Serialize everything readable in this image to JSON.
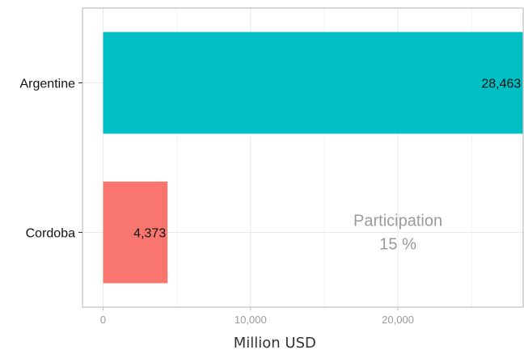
{
  "chart_data": {
    "type": "bar",
    "orientation": "horizontal",
    "categories": [
      "Argentine",
      "Cordoba"
    ],
    "values": [
      28463,
      4373
    ],
    "value_labels": [
      "28,463",
      "4,373"
    ],
    "colors": [
      "#00BFC4",
      "#F8766D"
    ],
    "xlabel": "Million USD",
    "ylabel": "",
    "title": "",
    "xlim": [
      -1400,
      28500
    ],
    "xticks": [
      0,
      10000,
      20000
    ],
    "xtick_labels": [
      "0",
      "10,000",
      "20,000"
    ],
    "grid": true,
    "legend": "none",
    "annotation": {
      "line1": "Participation",
      "line2": "15 %",
      "x": 20000,
      "category": "Cordoba"
    }
  }
}
